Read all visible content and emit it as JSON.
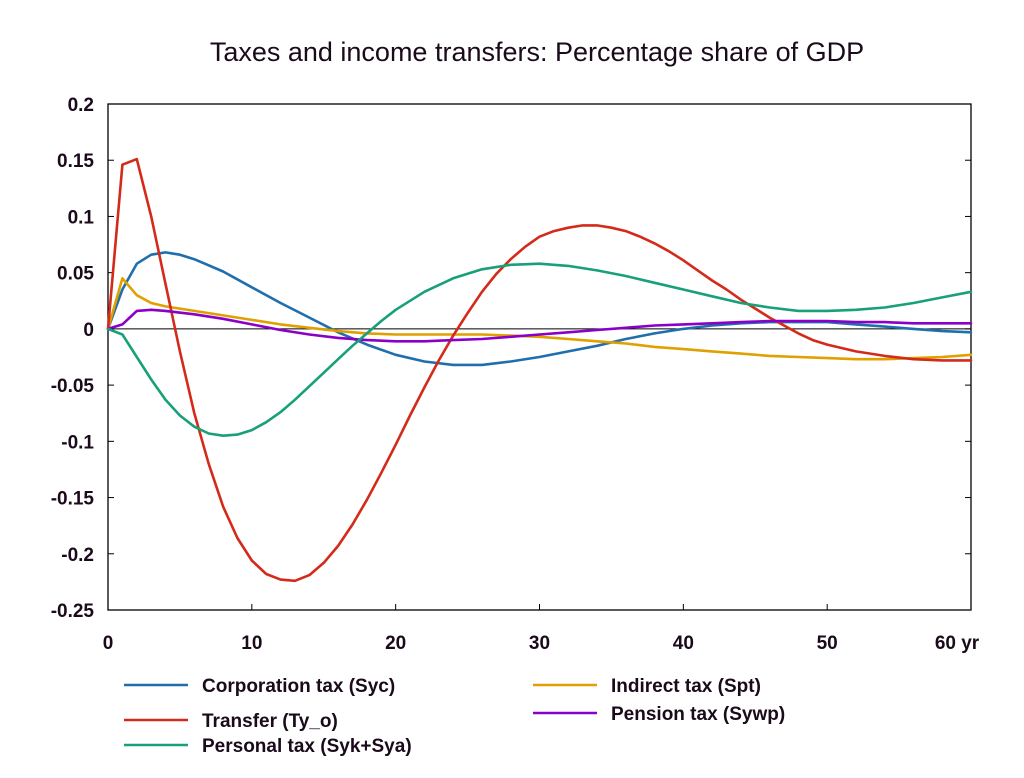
{
  "chart_data": {
    "type": "line",
    "title": "Taxes and income transfers: Percentage share of GDP",
    "xlabel": "",
    "ylabel": "",
    "xlim": [
      0,
      60
    ],
    "ylim": [
      -0.25,
      0.2
    ],
    "x_ticks": [
      0,
      10,
      20,
      30,
      40,
      50,
      60
    ],
    "x_tick_labels": [
      "0",
      "10",
      "20",
      "30",
      "40",
      "50",
      "60 yr"
    ],
    "y_ticks": [
      0.2,
      0.15,
      0.1,
      0.05,
      0,
      -0.05,
      -0.1,
      -0.15,
      -0.2,
      -0.25
    ],
    "y_tick_labels": [
      "0.2",
      "0.15",
      "0.1",
      "0.05",
      "0",
      "-0.05",
      "-0.1",
      "-0.15",
      "-0.2",
      "-0.25"
    ],
    "grid": false,
    "legend_position": "bottom",
    "series": [
      {
        "name": "Corporation tax (Syc)",
        "color": "#1f6faf",
        "x": [
          0,
          1,
          2,
          3,
          4,
          5,
          6,
          8,
          10,
          12,
          14,
          16,
          18,
          20,
          22,
          24,
          26,
          28,
          30,
          32,
          34,
          36,
          38,
          40,
          42,
          44,
          46,
          48,
          50,
          52,
          54,
          56,
          58,
          60
        ],
        "y": [
          0,
          0.035,
          0.058,
          0.066,
          0.068,
          0.066,
          0.062,
          0.051,
          0.037,
          0.023,
          0.01,
          -0.003,
          -0.014,
          -0.023,
          -0.029,
          -0.032,
          -0.032,
          -0.029,
          -0.025,
          -0.02,
          -0.015,
          -0.009,
          -0.004,
          0.0,
          0.003,
          0.005,
          0.006,
          0.006,
          0.006,
          0.004,
          0.002,
          0.0,
          -0.002,
          -0.003
        ]
      },
      {
        "name": "Indirect tax (Spt)",
        "color": "#e0a000",
        "x": [
          0,
          1,
          2,
          3,
          4,
          6,
          8,
          10,
          12,
          14,
          16,
          18,
          20,
          22,
          24,
          26,
          28,
          30,
          32,
          34,
          36,
          38,
          40,
          42,
          44,
          46,
          48,
          50,
          52,
          54,
          56,
          58,
          60
        ],
        "y": [
          0,
          0.045,
          0.03,
          0.023,
          0.02,
          0.016,
          0.012,
          0.008,
          0.004,
          0.001,
          -0.002,
          -0.004,
          -0.005,
          -0.005,
          -0.005,
          -0.005,
          -0.006,
          -0.007,
          -0.009,
          -0.011,
          -0.013,
          -0.016,
          -0.018,
          -0.02,
          -0.022,
          -0.024,
          -0.025,
          -0.026,
          -0.027,
          -0.027,
          -0.026,
          -0.025,
          -0.023
        ]
      },
      {
        "name": "Transfer (Ty_o)",
        "color": "#d42a1a",
        "x": [
          0,
          1,
          2,
          3,
          4,
          5,
          6,
          7,
          8,
          9,
          10,
          11,
          12,
          13,
          14,
          15,
          16,
          17,
          18,
          19,
          20,
          21,
          22,
          23,
          24,
          25,
          26,
          27,
          28,
          29,
          30,
          31,
          32,
          33,
          34,
          35,
          36,
          37,
          38,
          39,
          40,
          41,
          42,
          43,
          44,
          45,
          46,
          47,
          48,
          49,
          50,
          52,
          54,
          56,
          58,
          60
        ],
        "y": [
          0,
          0.146,
          0.151,
          0.1,
          0.04,
          -0.02,
          -0.075,
          -0.12,
          -0.158,
          -0.186,
          -0.206,
          -0.218,
          -0.223,
          -0.224,
          -0.219,
          -0.208,
          -0.193,
          -0.174,
          -0.152,
          -0.128,
          -0.103,
          -0.077,
          -0.052,
          -0.028,
          -0.006,
          0.014,
          0.033,
          0.049,
          0.062,
          0.073,
          0.082,
          0.087,
          0.09,
          0.092,
          0.092,
          0.09,
          0.087,
          0.082,
          0.076,
          0.069,
          0.061,
          0.052,
          0.043,
          0.035,
          0.026,
          0.018,
          0.01,
          0.003,
          -0.004,
          -0.01,
          -0.014,
          -0.02,
          -0.024,
          -0.027,
          -0.028,
          -0.028
        ]
      },
      {
        "name": "Pension tax (Sywp)",
        "color": "#8a00c8",
        "x": [
          0,
          1,
          2,
          3,
          4,
          6,
          8,
          10,
          12,
          14,
          16,
          18,
          20,
          22,
          24,
          26,
          28,
          30,
          32,
          34,
          36,
          38,
          40,
          42,
          44,
          46,
          48,
          50,
          52,
          54,
          56,
          58,
          60
        ],
        "y": [
          0,
          0.004,
          0.016,
          0.017,
          0.016,
          0.013,
          0.009,
          0.004,
          -0.001,
          -0.005,
          -0.008,
          -0.01,
          -0.011,
          -0.011,
          -0.01,
          -0.009,
          -0.007,
          -0.005,
          -0.003,
          -0.001,
          0.001,
          0.003,
          0.004,
          0.005,
          0.006,
          0.007,
          0.007,
          0.007,
          0.006,
          0.006,
          0.005,
          0.005,
          0.005
        ]
      },
      {
        "name": "Personal tax (Syk+Sya)",
        "color": "#18a07a",
        "x": [
          0,
          1,
          2,
          3,
          4,
          5,
          6,
          7,
          8,
          9,
          10,
          11,
          12,
          13,
          14,
          15,
          16,
          17,
          18,
          19,
          20,
          22,
          24,
          26,
          28,
          30,
          32,
          34,
          36,
          38,
          40,
          42,
          44,
          46,
          48,
          50,
          52,
          54,
          56,
          58,
          60
        ],
        "y": [
          0,
          -0.005,
          -0.025,
          -0.045,
          -0.063,
          -0.077,
          -0.087,
          -0.093,
          -0.095,
          -0.094,
          -0.09,
          -0.083,
          -0.074,
          -0.063,
          -0.051,
          -0.039,
          -0.027,
          -0.015,
          -0.004,
          0.007,
          0.017,
          0.033,
          0.045,
          0.053,
          0.057,
          0.058,
          0.056,
          0.052,
          0.047,
          0.041,
          0.035,
          0.029,
          0.023,
          0.019,
          0.016,
          0.016,
          0.017,
          0.019,
          0.023,
          0.028,
          0.033
        ]
      }
    ],
    "legend": [
      {
        "name": "Corporation tax (Syc)",
        "color": "#1f6faf"
      },
      {
        "name": "Indirect tax (Spt)",
        "color": "#e0a000"
      },
      {
        "name": "Transfer (Ty_o)",
        "color": "#d42a1a"
      },
      {
        "name": "Pension tax (Sywp)",
        "color": "#8a00c8"
      },
      {
        "name": "Personal tax (Syk+Sya)",
        "color": "#18a07a"
      }
    ]
  }
}
